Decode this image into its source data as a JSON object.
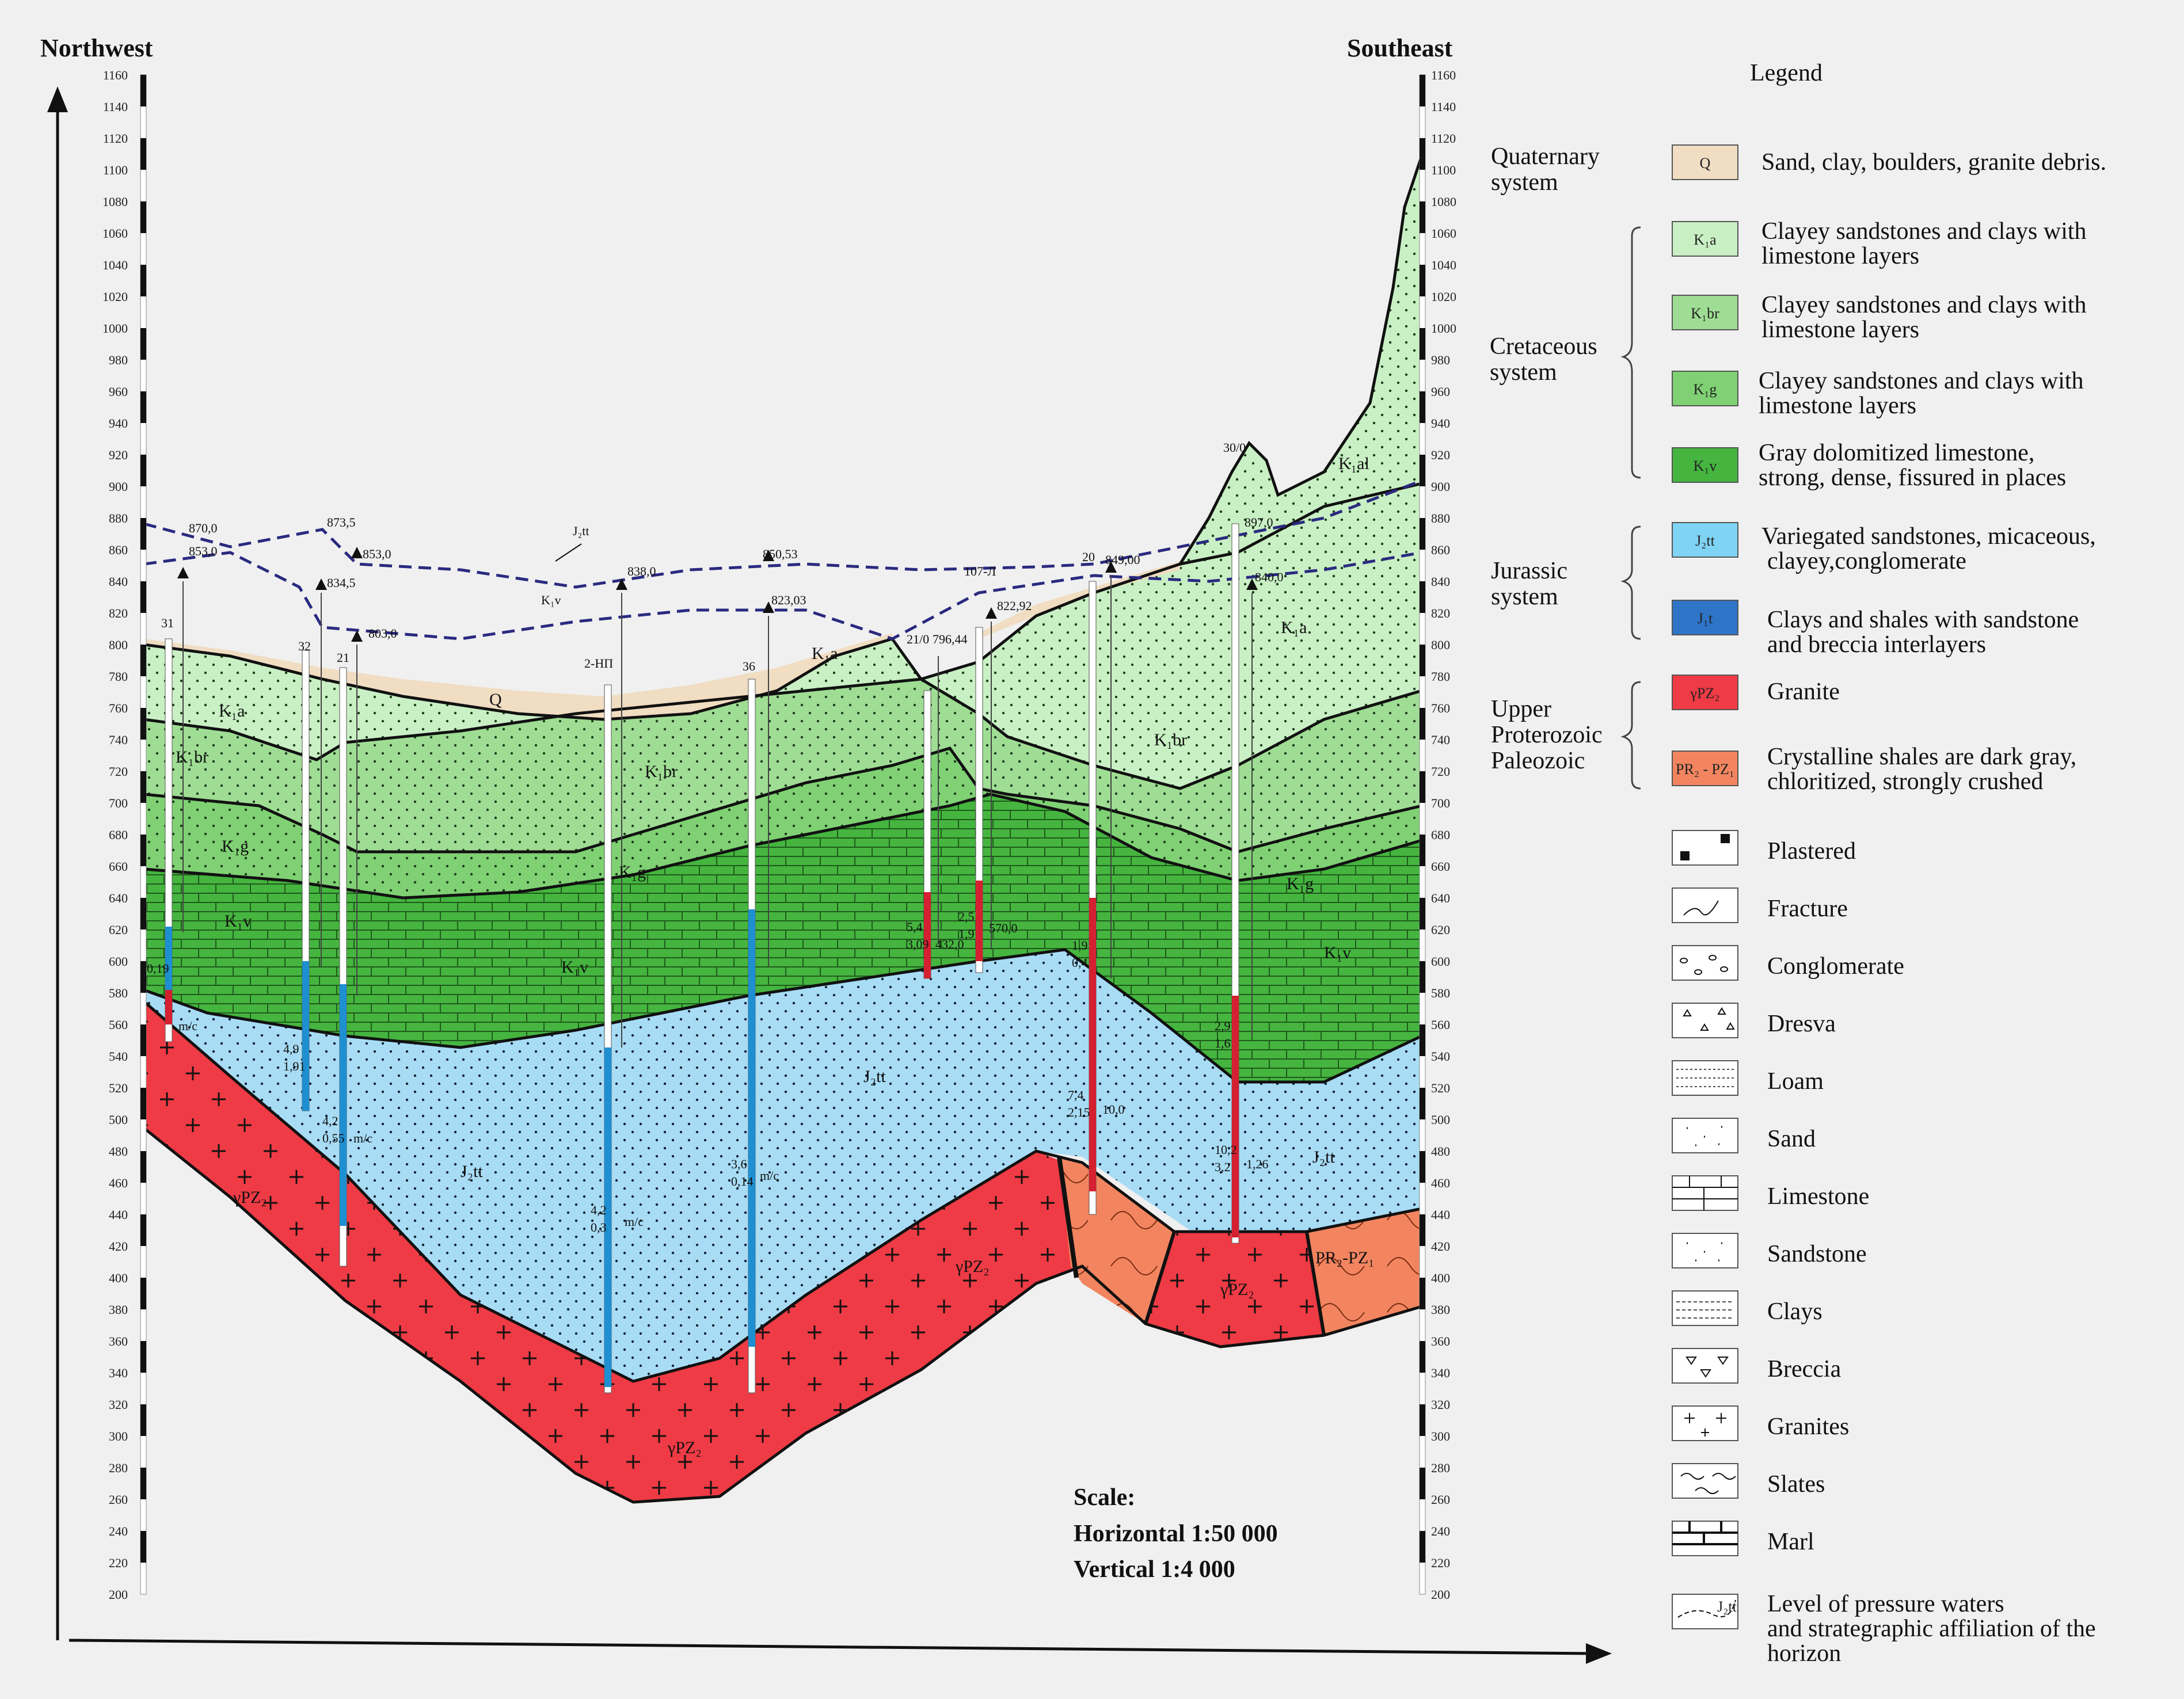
{
  "header": {
    "northwest": "Northwest",
    "southeast": "Southeast",
    "legend_title": "Legend"
  },
  "depth_ticks": [
    "1160",
    "1140",
    "1120",
    "1100",
    "1080",
    "1060",
    "1040",
    "1020",
    "1000",
    "980",
    "960",
    "940",
    "920",
    "900",
    "880",
    "860",
    "840",
    "820",
    "800",
    "780",
    "760",
    "740",
    "720",
    "700",
    "680",
    "660",
    "640",
    "620",
    "600",
    "580",
    "560",
    "540",
    "520",
    "500",
    "480",
    "460",
    "440",
    "420",
    "400",
    "380",
    "360",
    "340",
    "320",
    "300",
    "280",
    "260",
    "240",
    "220",
    "200"
  ],
  "section_labels": {
    "q": "Q",
    "k1a_left": "K₁a",
    "k1br_left": "K₁br",
    "k1g_left": "K₁g",
    "k1v_left": "K₁v",
    "k1br_mid": "K₁br",
    "k1g_mid": "K₁g",
    "k1v_mid": "K₁v",
    "k1a_mid": "K₁a",
    "k1al_right": "K₁al",
    "k1a_right": "K₁a",
    "k1br_right": "K₁br",
    "k1g_right": "K₁g",
    "k1v_right": "K₁v",
    "j2tt_mid": "J₂tt",
    "j2tt_left": "J₂tt",
    "j2tt_right": "J₂tt",
    "gpz_left": "γPZ₂",
    "gpz_bottom": "γPZ₂",
    "gpz_mid": "γPZ₂",
    "gpz_right": "γPZ₂",
    "prpz": "PR₂-PZ₁",
    "horizon_j2tt": "J₂tt",
    "horizon_k1v": "K₁v"
  },
  "wells": [
    {
      "name": "31",
      "top": "870,0",
      "sub": "853,0",
      "a": "0,19",
      "b": "m/c"
    },
    {
      "name": "32",
      "top": "873,5",
      "sub": "834,5",
      "a": "4,9",
      "b": "1,91"
    },
    {
      "name": "21",
      "top": "853,0",
      "sub": "803,0",
      "a": "4,2",
      "b": "0,55"
    },
    {
      "name": "2-НП",
      "top": "838,0",
      "sub": "",
      "a": "4,2",
      "b": "0,3"
    },
    {
      "name": "36",
      "top": "850,53",
      "sub": "823,03",
      "a": "3,6",
      "b": "0,14"
    },
    {
      "name": "21/0",
      "top": "796,44",
      "sub": "",
      "a": "5,4",
      "b": "3,09"
    },
    {
      "name": "107-Л",
      "top": "822,92",
      "sub": "",
      "a": "2,5",
      "b": "1,9"
    },
    {
      "name": "20",
      "top": "849,00",
      "sub": "",
      "a": "1,9",
      "b": "0,4"
    },
    {
      "name": "30/0",
      "top": "897,0",
      "sub": "840,0",
      "a": "2,9",
      "b": "1,6"
    }
  ],
  "well_extras": {
    "w21_b": "m/c",
    "w2np_b": "m/c",
    "w36_b": "m/c",
    "w210_c": "432,0",
    "w107_c": "570,0",
    "w20_c": "7,4",
    "w20_d": "2,15",
    "w20_e": "10,0",
    "w300_c": "10,2",
    "w300_d": "3,2",
    "w300_e": "1,26"
  },
  "scale": {
    "title": "Scale:",
    "horizontal": "Horizontal 1:50 000",
    "vertical": "Vertical 1:4 000"
  },
  "legend": {
    "systems": {
      "quaternary": [
        "Quaternary",
        "system"
      ],
      "cretaceous": [
        "Cretaceous",
        "system"
      ],
      "jurassic": [
        "Jurassic",
        "system"
      ],
      "upper": [
        "Upper",
        "Proterozoic",
        "Paleozoic"
      ]
    },
    "units": [
      {
        "symbol": "Q",
        "lines": [
          "Sand, clay, boulders, granite debris."
        ]
      },
      {
        "symbol": "K₁a",
        "lines": [
          "Clayey sandstones and clays with",
          "limestone layers"
        ]
      },
      {
        "symbol": "K₁br",
        "lines": [
          "Clayey sandstones and clays with",
          "limestone layers"
        ]
      },
      {
        "symbol": "K₁g",
        "lines": [
          "Clayey sandstones and clays with",
          "limestone layers"
        ]
      },
      {
        "symbol": "K₁v",
        "lines": [
          "Gray dolomitized limestone,",
          "strong, dense, fissured in places"
        ]
      },
      {
        "symbol": "J₂tt",
        "lines": [
          "Variegated sandstones, micaceous,",
          "clayey,conglomerate"
        ]
      },
      {
        "symbol": "J₁t",
        "lines": [
          "Clays and shales with sandstone",
          "and breccia interlayers"
        ]
      },
      {
        "symbol": "γPZ₂",
        "lines": [
          "Granite"
        ]
      },
      {
        "symbol": "PR₂ - PZ₁",
        "lines": [
          "Crystalline shales are dark gray,",
          "chloritized, strongly crushed"
        ]
      }
    ],
    "patterns": [
      {
        "label": "Plastered"
      },
      {
        "label": "Fracture"
      },
      {
        "label": "Conglomerate"
      },
      {
        "label": "Dresva"
      },
      {
        "label": "Loam"
      },
      {
        "label": "Sand"
      },
      {
        "label": "Limestone"
      },
      {
        "label": "Sandstone"
      },
      {
        "label": "Clays"
      },
      {
        "label": "Breccia"
      },
      {
        "label": "Granites"
      },
      {
        "label": "Slates"
      },
      {
        "label": "Marl"
      }
    ],
    "pressure": {
      "symbol": "J₂tt",
      "lines": [
        "Level of pressure waters",
        "and strategraphic affiliation of the",
        "horizon"
      ]
    }
  },
  "colors": {
    "k1a": "#c9f0c4",
    "k1br": "#9fdd94",
    "k1g": "#7fd173",
    "k1v": "#45b53f",
    "j2tt": "#a8dcf5",
    "j1t": "#2e75c8",
    "granite": "#ef3b45",
    "shale": "#f28560",
    "quaternary": "#f0ddc2",
    "line_dashed": "#2a2a80"
  }
}
